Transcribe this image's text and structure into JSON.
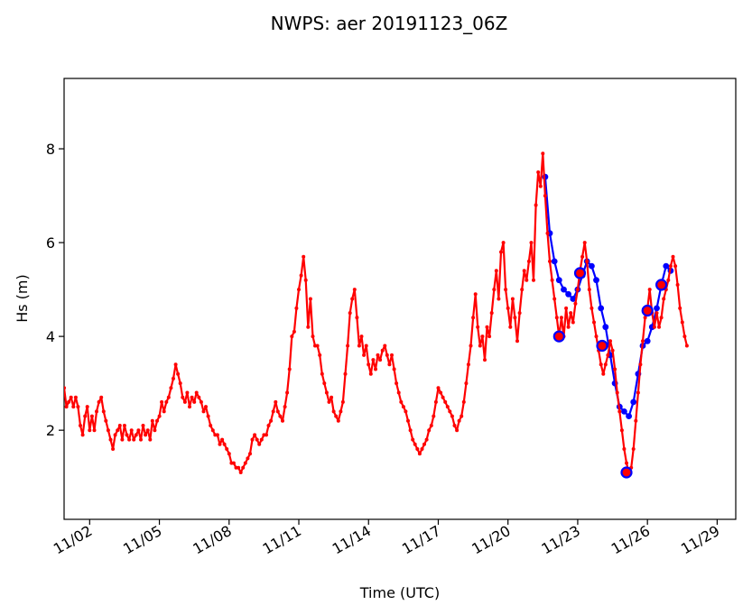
{
  "chart_data": {
    "type": "line",
    "title": "NWPS: aer 20191123_06Z",
    "xlabel": "Time (UTC)",
    "ylabel": "Hs (m)",
    "xlim": [
      -1.1,
      27.8
    ],
    "ylim": [
      0.1,
      9.5
    ],
    "xticks": [
      {
        "label": "11/02",
        "x": 0
      },
      {
        "label": "11/05",
        "x": 3
      },
      {
        "label": "11/08",
        "x": 6
      },
      {
        "label": "11/11",
        "x": 9
      },
      {
        "label": "11/14",
        "x": 12
      },
      {
        "label": "11/17",
        "x": 15
      },
      {
        "label": "11/20",
        "x": 18
      },
      {
        "label": "11/23",
        "x": 21
      },
      {
        "label": "11/26",
        "x": 24
      },
      {
        "label": "11/29",
        "x": 27
      }
    ],
    "yticks": [
      2,
      4,
      6,
      8
    ],
    "grid": false,
    "series": [
      {
        "role": "observed",
        "color": "#ff0000",
        "points": [
          [
            -1.1,
            2.9
          ],
          [
            -1.0,
            2.5
          ],
          [
            -0.9,
            2.6
          ],
          [
            -0.8,
            2.7
          ],
          [
            -0.7,
            2.5
          ],
          [
            -0.6,
            2.7
          ],
          [
            -0.5,
            2.5
          ],
          [
            -0.4,
            2.1
          ],
          [
            -0.3,
            1.9
          ],
          [
            -0.2,
            2.3
          ],
          [
            -0.1,
            2.5
          ],
          [
            0.0,
            2.0
          ],
          [
            0.1,
            2.3
          ],
          [
            0.2,
            2.0
          ],
          [
            0.3,
            2.4
          ],
          [
            0.4,
            2.6
          ],
          [
            0.5,
            2.7
          ],
          [
            0.6,
            2.4
          ],
          [
            0.7,
            2.2
          ],
          [
            0.8,
            2.0
          ],
          [
            0.9,
            1.8
          ],
          [
            1.0,
            1.6
          ],
          [
            1.1,
            1.9
          ],
          [
            1.2,
            2.0
          ],
          [
            1.3,
            2.1
          ],
          [
            1.4,
            1.8
          ],
          [
            1.5,
            2.1
          ],
          [
            1.6,
            1.9
          ],
          [
            1.7,
            1.8
          ],
          [
            1.8,
            2.0
          ],
          [
            1.9,
            1.8
          ],
          [
            2.0,
            1.9
          ],
          [
            2.1,
            2.0
          ],
          [
            2.2,
            1.8
          ],
          [
            2.3,
            2.1
          ],
          [
            2.4,
            1.9
          ],
          [
            2.5,
            2.0
          ],
          [
            2.6,
            1.8
          ],
          [
            2.7,
            2.2
          ],
          [
            2.8,
            2.0
          ],
          [
            2.9,
            2.2
          ],
          [
            3.0,
            2.3
          ],
          [
            3.1,
            2.6
          ],
          [
            3.2,
            2.4
          ],
          [
            3.3,
            2.6
          ],
          [
            3.4,
            2.7
          ],
          [
            3.5,
            2.9
          ],
          [
            3.6,
            3.1
          ],
          [
            3.7,
            3.4
          ],
          [
            3.8,
            3.2
          ],
          [
            3.9,
            3.0
          ],
          [
            4.0,
            2.7
          ],
          [
            4.1,
            2.6
          ],
          [
            4.2,
            2.8
          ],
          [
            4.3,
            2.5
          ],
          [
            4.4,
            2.7
          ],
          [
            4.5,
            2.6
          ],
          [
            4.6,
            2.8
          ],
          [
            4.7,
            2.7
          ],
          [
            4.8,
            2.6
          ],
          [
            4.9,
            2.4
          ],
          [
            5.0,
            2.5
          ],
          [
            5.1,
            2.3
          ],
          [
            5.2,
            2.1
          ],
          [
            5.3,
            2.0
          ],
          [
            5.4,
            1.9
          ],
          [
            5.5,
            1.9
          ],
          [
            5.6,
            1.7
          ],
          [
            5.7,
            1.8
          ],
          [
            5.8,
            1.7
          ],
          [
            5.9,
            1.6
          ],
          [
            6.0,
            1.5
          ],
          [
            6.1,
            1.3
          ],
          [
            6.2,
            1.3
          ],
          [
            6.3,
            1.2
          ],
          [
            6.4,
            1.2
          ],
          [
            6.5,
            1.1
          ],
          [
            6.6,
            1.2
          ],
          [
            6.7,
            1.3
          ],
          [
            6.8,
            1.4
          ],
          [
            6.9,
            1.5
          ],
          [
            7.0,
            1.8
          ],
          [
            7.1,
            1.9
          ],
          [
            7.2,
            1.8
          ],
          [
            7.3,
            1.7
          ],
          [
            7.4,
            1.8
          ],
          [
            7.5,
            1.9
          ],
          [
            7.6,
            1.9
          ],
          [
            7.7,
            2.1
          ],
          [
            7.8,
            2.2
          ],
          [
            7.9,
            2.4
          ],
          [
            8.0,
            2.6
          ],
          [
            8.1,
            2.4
          ],
          [
            8.2,
            2.3
          ],
          [
            8.3,
            2.2
          ],
          [
            8.4,
            2.5
          ],
          [
            8.5,
            2.8
          ],
          [
            8.6,
            3.3
          ],
          [
            8.7,
            4.0
          ],
          [
            8.8,
            4.1
          ],
          [
            8.9,
            4.6
          ],
          [
            9.0,
            5.0
          ],
          [
            9.1,
            5.3
          ],
          [
            9.2,
            5.7
          ],
          [
            9.3,
            5.2
          ],
          [
            9.4,
            4.2
          ],
          [
            9.5,
            4.8
          ],
          [
            9.6,
            4.0
          ],
          [
            9.7,
            3.8
          ],
          [
            9.8,
            3.8
          ],
          [
            9.9,
            3.6
          ],
          [
            10.0,
            3.2
          ],
          [
            10.1,
            3.0
          ],
          [
            10.2,
            2.8
          ],
          [
            10.3,
            2.6
          ],
          [
            10.4,
            2.7
          ],
          [
            10.5,
            2.4
          ],
          [
            10.6,
            2.3
          ],
          [
            10.7,
            2.2
          ],
          [
            10.8,
            2.4
          ],
          [
            10.9,
            2.6
          ],
          [
            11.0,
            3.2
          ],
          [
            11.1,
            3.8
          ],
          [
            11.2,
            4.5
          ],
          [
            11.3,
            4.8
          ],
          [
            11.4,
            5.0
          ],
          [
            11.5,
            4.4
          ],
          [
            11.6,
            3.8
          ],
          [
            11.7,
            4.0
          ],
          [
            11.8,
            3.6
          ],
          [
            11.9,
            3.8
          ],
          [
            12.0,
            3.4
          ],
          [
            12.1,
            3.2
          ],
          [
            12.2,
            3.5
          ],
          [
            12.3,
            3.3
          ],
          [
            12.4,
            3.6
          ],
          [
            12.5,
            3.5
          ],
          [
            12.6,
            3.7
          ],
          [
            12.7,
            3.8
          ],
          [
            12.8,
            3.6
          ],
          [
            12.9,
            3.4
          ],
          [
            13.0,
            3.6
          ],
          [
            13.1,
            3.3
          ],
          [
            13.2,
            3.0
          ],
          [
            13.3,
            2.8
          ],
          [
            13.4,
            2.6
          ],
          [
            13.5,
            2.5
          ],
          [
            13.6,
            2.4
          ],
          [
            13.7,
            2.2
          ],
          [
            13.8,
            2.0
          ],
          [
            13.9,
            1.8
          ],
          [
            14.0,
            1.7
          ],
          [
            14.1,
            1.6
          ],
          [
            14.2,
            1.5
          ],
          [
            14.3,
            1.6
          ],
          [
            14.4,
            1.7
          ],
          [
            14.5,
            1.8
          ],
          [
            14.6,
            2.0
          ],
          [
            14.7,
            2.1
          ],
          [
            14.8,
            2.3
          ],
          [
            14.9,
            2.6
          ],
          [
            15.0,
            2.9
          ],
          [
            15.1,
            2.8
          ],
          [
            15.2,
            2.7
          ],
          [
            15.3,
            2.6
          ],
          [
            15.4,
            2.5
          ],
          [
            15.5,
            2.4
          ],
          [
            15.6,
            2.3
          ],
          [
            15.7,
            2.1
          ],
          [
            15.8,
            2.0
          ],
          [
            15.9,
            2.2
          ],
          [
            16.0,
            2.3
          ],
          [
            16.1,
            2.6
          ],
          [
            16.2,
            3.0
          ],
          [
            16.3,
            3.4
          ],
          [
            16.4,
            3.8
          ],
          [
            16.5,
            4.4
          ],
          [
            16.6,
            4.9
          ],
          [
            16.7,
            4.2
          ],
          [
            16.8,
            3.8
          ],
          [
            16.9,
            4.0
          ],
          [
            17.0,
            3.5
          ],
          [
            17.1,
            4.2
          ],
          [
            17.2,
            4.0
          ],
          [
            17.3,
            4.5
          ],
          [
            17.4,
            5.0
          ],
          [
            17.5,
            5.4
          ],
          [
            17.6,
            4.8
          ],
          [
            17.7,
            5.8
          ],
          [
            17.8,
            6.0
          ],
          [
            17.9,
            5.0
          ],
          [
            18.0,
            4.6
          ],
          [
            18.1,
            4.2
          ],
          [
            18.2,
            4.8
          ],
          [
            18.3,
            4.4
          ],
          [
            18.4,
            3.9
          ],
          [
            18.5,
            4.5
          ],
          [
            18.6,
            5.0
          ],
          [
            18.7,
            5.4
          ],
          [
            18.8,
            5.2
          ],
          [
            18.9,
            5.6
          ],
          [
            19.0,
            6.0
          ],
          [
            19.1,
            5.2
          ],
          [
            19.2,
            6.8
          ],
          [
            19.3,
            7.5
          ],
          [
            19.4,
            7.2
          ],
          [
            19.5,
            7.9
          ],
          [
            19.6,
            7.0
          ],
          [
            19.7,
            6.2
          ],
          [
            19.8,
            5.6
          ],
          [
            19.9,
            5.2
          ],
          [
            20.0,
            4.8
          ],
          [
            20.1,
            4.4
          ],
          [
            20.2,
            4.0
          ],
          [
            20.3,
            4.4
          ],
          [
            20.4,
            4.0
          ],
          [
            20.5,
            4.6
          ],
          [
            20.6,
            4.2
          ],
          [
            20.7,
            4.5
          ],
          [
            20.8,
            4.3
          ],
          [
            20.9,
            4.7
          ],
          [
            21.0,
            5.0
          ],
          [
            21.1,
            5.4
          ],
          [
            21.2,
            5.7
          ],
          [
            21.3,
            6.0
          ],
          [
            21.4,
            5.6
          ],
          [
            21.5,
            5.0
          ],
          [
            21.6,
            4.6
          ],
          [
            21.7,
            4.3
          ],
          [
            21.8,
            4.0
          ],
          [
            21.9,
            3.7
          ],
          [
            22.0,
            3.4
          ],
          [
            22.1,
            3.2
          ],
          [
            22.2,
            3.4
          ],
          [
            22.3,
            3.6
          ],
          [
            22.4,
            3.9
          ],
          [
            22.5,
            3.7
          ],
          [
            22.6,
            3.3
          ],
          [
            22.7,
            2.8
          ],
          [
            22.8,
            2.4
          ],
          [
            22.9,
            2.0
          ],
          [
            23.0,
            1.6
          ],
          [
            23.1,
            1.3
          ],
          [
            23.2,
            1.1
          ],
          [
            23.3,
            1.2
          ],
          [
            23.4,
            1.6
          ],
          [
            23.5,
            2.2
          ],
          [
            23.6,
            2.8
          ],
          [
            23.7,
            3.4
          ],
          [
            23.8,
            3.9
          ],
          [
            23.9,
            4.4
          ],
          [
            24.0,
            4.6
          ],
          [
            24.1,
            5.0
          ],
          [
            24.2,
            4.5
          ],
          [
            24.3,
            4.2
          ],
          [
            24.4,
            4.5
          ],
          [
            24.5,
            4.2
          ],
          [
            24.6,
            4.4
          ],
          [
            24.7,
            4.8
          ],
          [
            24.8,
            5.0
          ],
          [
            24.9,
            5.2
          ],
          [
            25.0,
            5.5
          ],
          [
            25.1,
            5.7
          ],
          [
            25.2,
            5.5
          ],
          [
            25.3,
            5.1
          ],
          [
            25.4,
            4.6
          ],
          [
            25.5,
            4.3
          ],
          [
            25.6,
            4.0
          ],
          [
            25.7,
            3.8
          ]
        ]
      },
      {
        "role": "forecast",
        "color": "#0000ff",
        "points": [
          [
            19.6,
            7.4
          ],
          [
            19.8,
            6.2
          ],
          [
            20.0,
            5.6
          ],
          [
            20.2,
            5.2
          ],
          [
            20.4,
            5.0
          ],
          [
            20.6,
            4.9
          ],
          [
            20.8,
            4.8
          ],
          [
            21.0,
            5.0
          ],
          [
            21.2,
            5.3
          ],
          [
            21.4,
            5.6
          ],
          [
            21.6,
            5.5
          ],
          [
            21.8,
            5.2
          ],
          [
            22.0,
            4.6
          ],
          [
            22.2,
            4.2
          ],
          [
            22.4,
            3.6
          ],
          [
            22.6,
            3.0
          ],
          [
            22.8,
            2.5
          ],
          [
            23.0,
            2.4
          ],
          [
            23.2,
            2.3
          ],
          [
            23.4,
            2.6
          ],
          [
            23.6,
            3.2
          ],
          [
            23.8,
            3.8
          ],
          [
            24.0,
            3.9
          ],
          [
            24.2,
            4.2
          ],
          [
            24.4,
            4.6
          ],
          [
            24.6,
            5.1
          ],
          [
            24.8,
            5.5
          ],
          [
            25.0,
            5.4
          ]
        ]
      }
    ],
    "markers": [
      {
        "x": 20.2,
        "y": 4.0
      },
      {
        "x": 21.1,
        "y": 5.35
      },
      {
        "x": 22.05,
        "y": 3.8
      },
      {
        "x": 23.1,
        "y": 1.1
      },
      {
        "x": 24.0,
        "y": 4.55
      },
      {
        "x": 24.6,
        "y": 5.1
      }
    ]
  }
}
